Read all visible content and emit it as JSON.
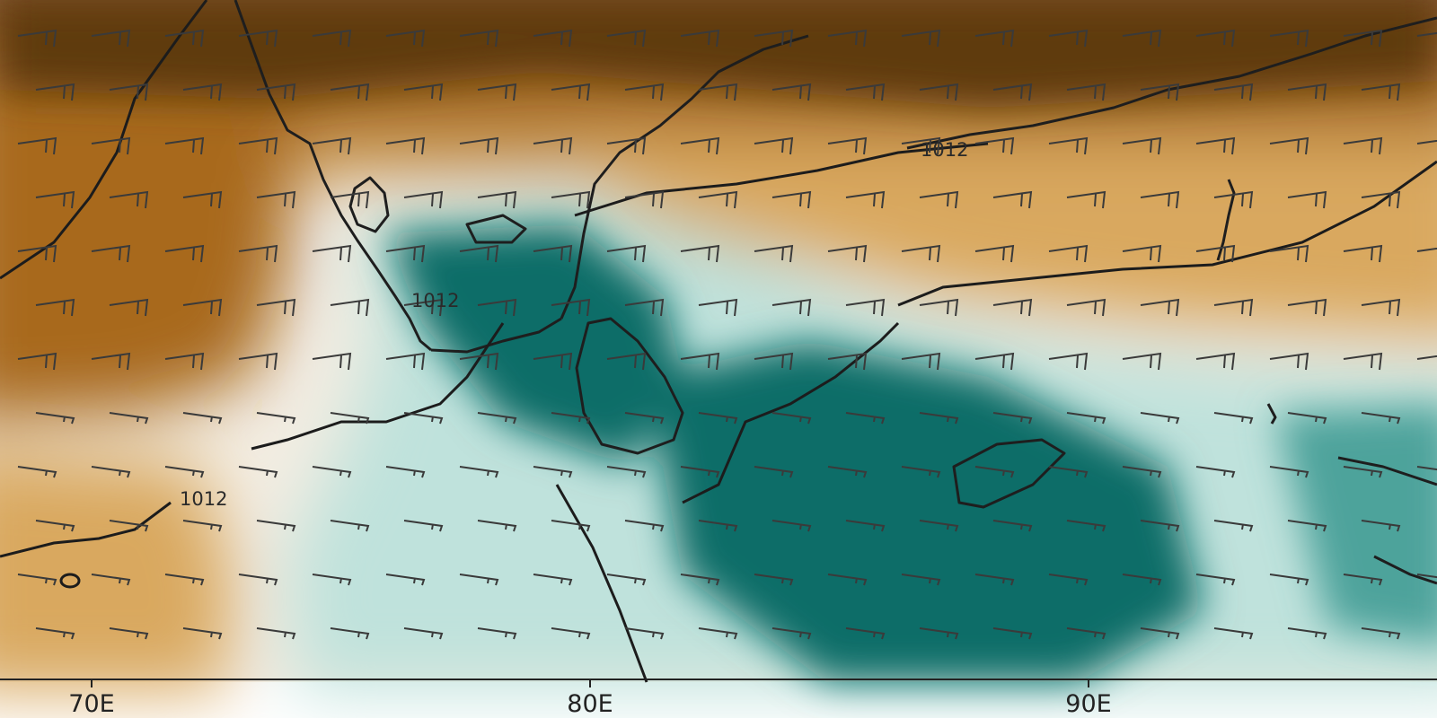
{
  "map": {
    "colors": {
      "dry_dark": "#5e3a10",
      "dry_mid": "#a8691f",
      "dry_light": "#d9a85e",
      "neutral": "#f3ede2",
      "wet_light": "#bfe2dc",
      "wet_mid": "#4ea39b",
      "wet_dark": "#0f6d68"
    },
    "x_axis": {
      "ticks": [
        {
          "value": 70,
          "label": "70E"
        },
        {
          "value": 80,
          "label": "80E"
        },
        {
          "value": 90,
          "label": "90E"
        }
      ]
    },
    "isobars": [
      {
        "value": 1012,
        "label": "1012",
        "where": "north-east"
      },
      {
        "value": 1012,
        "label": "1012",
        "where": "south-west"
      },
      {
        "value": 1012,
        "label": "1012",
        "where": "south-india"
      }
    ],
    "layers": [
      "anomaly-shading",
      "coastlines",
      "isobars",
      "wind-barbs"
    ]
  }
}
